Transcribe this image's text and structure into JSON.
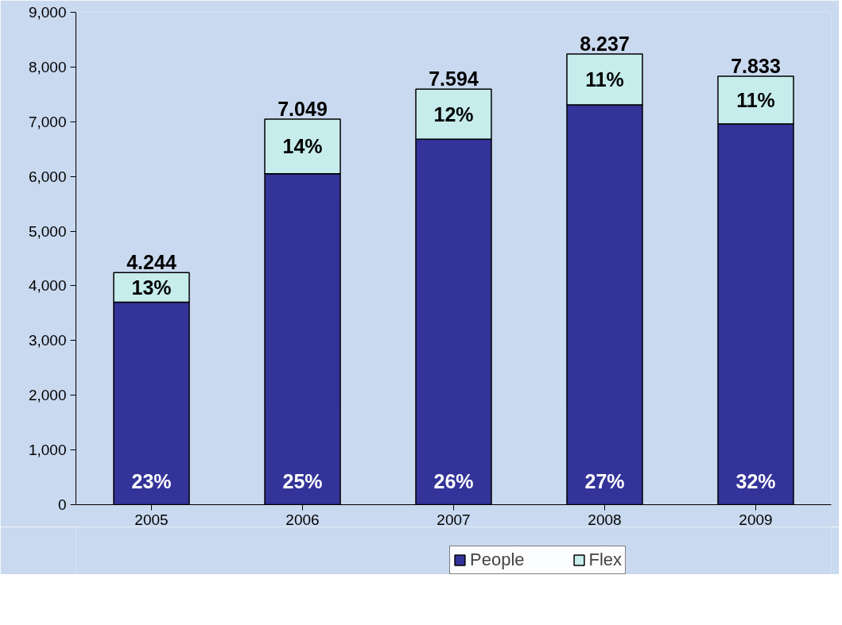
{
  "chart_data": {
    "type": "bar",
    "stacked": true,
    "categories": [
      "2005",
      "2006",
      "2007",
      "2008",
      "2009"
    ],
    "series": [
      {
        "name": "People",
        "color": "#333399",
        "values": [
          3700,
          6050,
          6680,
          7310,
          6960
        ]
      },
      {
        "name": "Flex",
        "color": "#c6ecec",
        "values": [
          544,
          999,
          914,
          927,
          873
        ]
      }
    ],
    "annotations": [
      "23%",
      "25%",
      "26%",
      "27%",
      "32%",
      "13%",
      "14%",
      "12%",
      "11%",
      "11%",
      {
        "text": "4.244",
        "x": "2005",
        "y": 4244
      },
      {
        "text": "7.049",
        "x": "2006",
        "y": 7049
      },
      {
        "text": "7.594",
        "x": "2007",
        "y": 7594
      },
      {
        "text": "8.237",
        "x": "2008",
        "y": 8237
      },
      {
        "text": "7.833",
        "x": "2009",
        "y": 7833
      }
    ],
    "ylim": [
      0,
      9000
    ],
    "yticks": [
      0,
      {
        "value": 1000,
        "label": "1,000"
      },
      {
        "value": 2000,
        "label": "2,000"
      },
      {
        "value": 3000,
        "label": "3,000"
      },
      {
        "value": 4000,
        "label": "4,000"
      },
      {
        "value": 5000,
        "label": "5,000"
      },
      {
        "value": 6000,
        "label": "6,000"
      },
      {
        "value": 7000,
        "label": "7,000"
      },
      {
        "value": 8000,
        "label": "8,000"
      },
      {
        "value": 9000,
        "label": "9,000"
      }
    ],
    "grid": false,
    "legend": "bottom"
  }
}
